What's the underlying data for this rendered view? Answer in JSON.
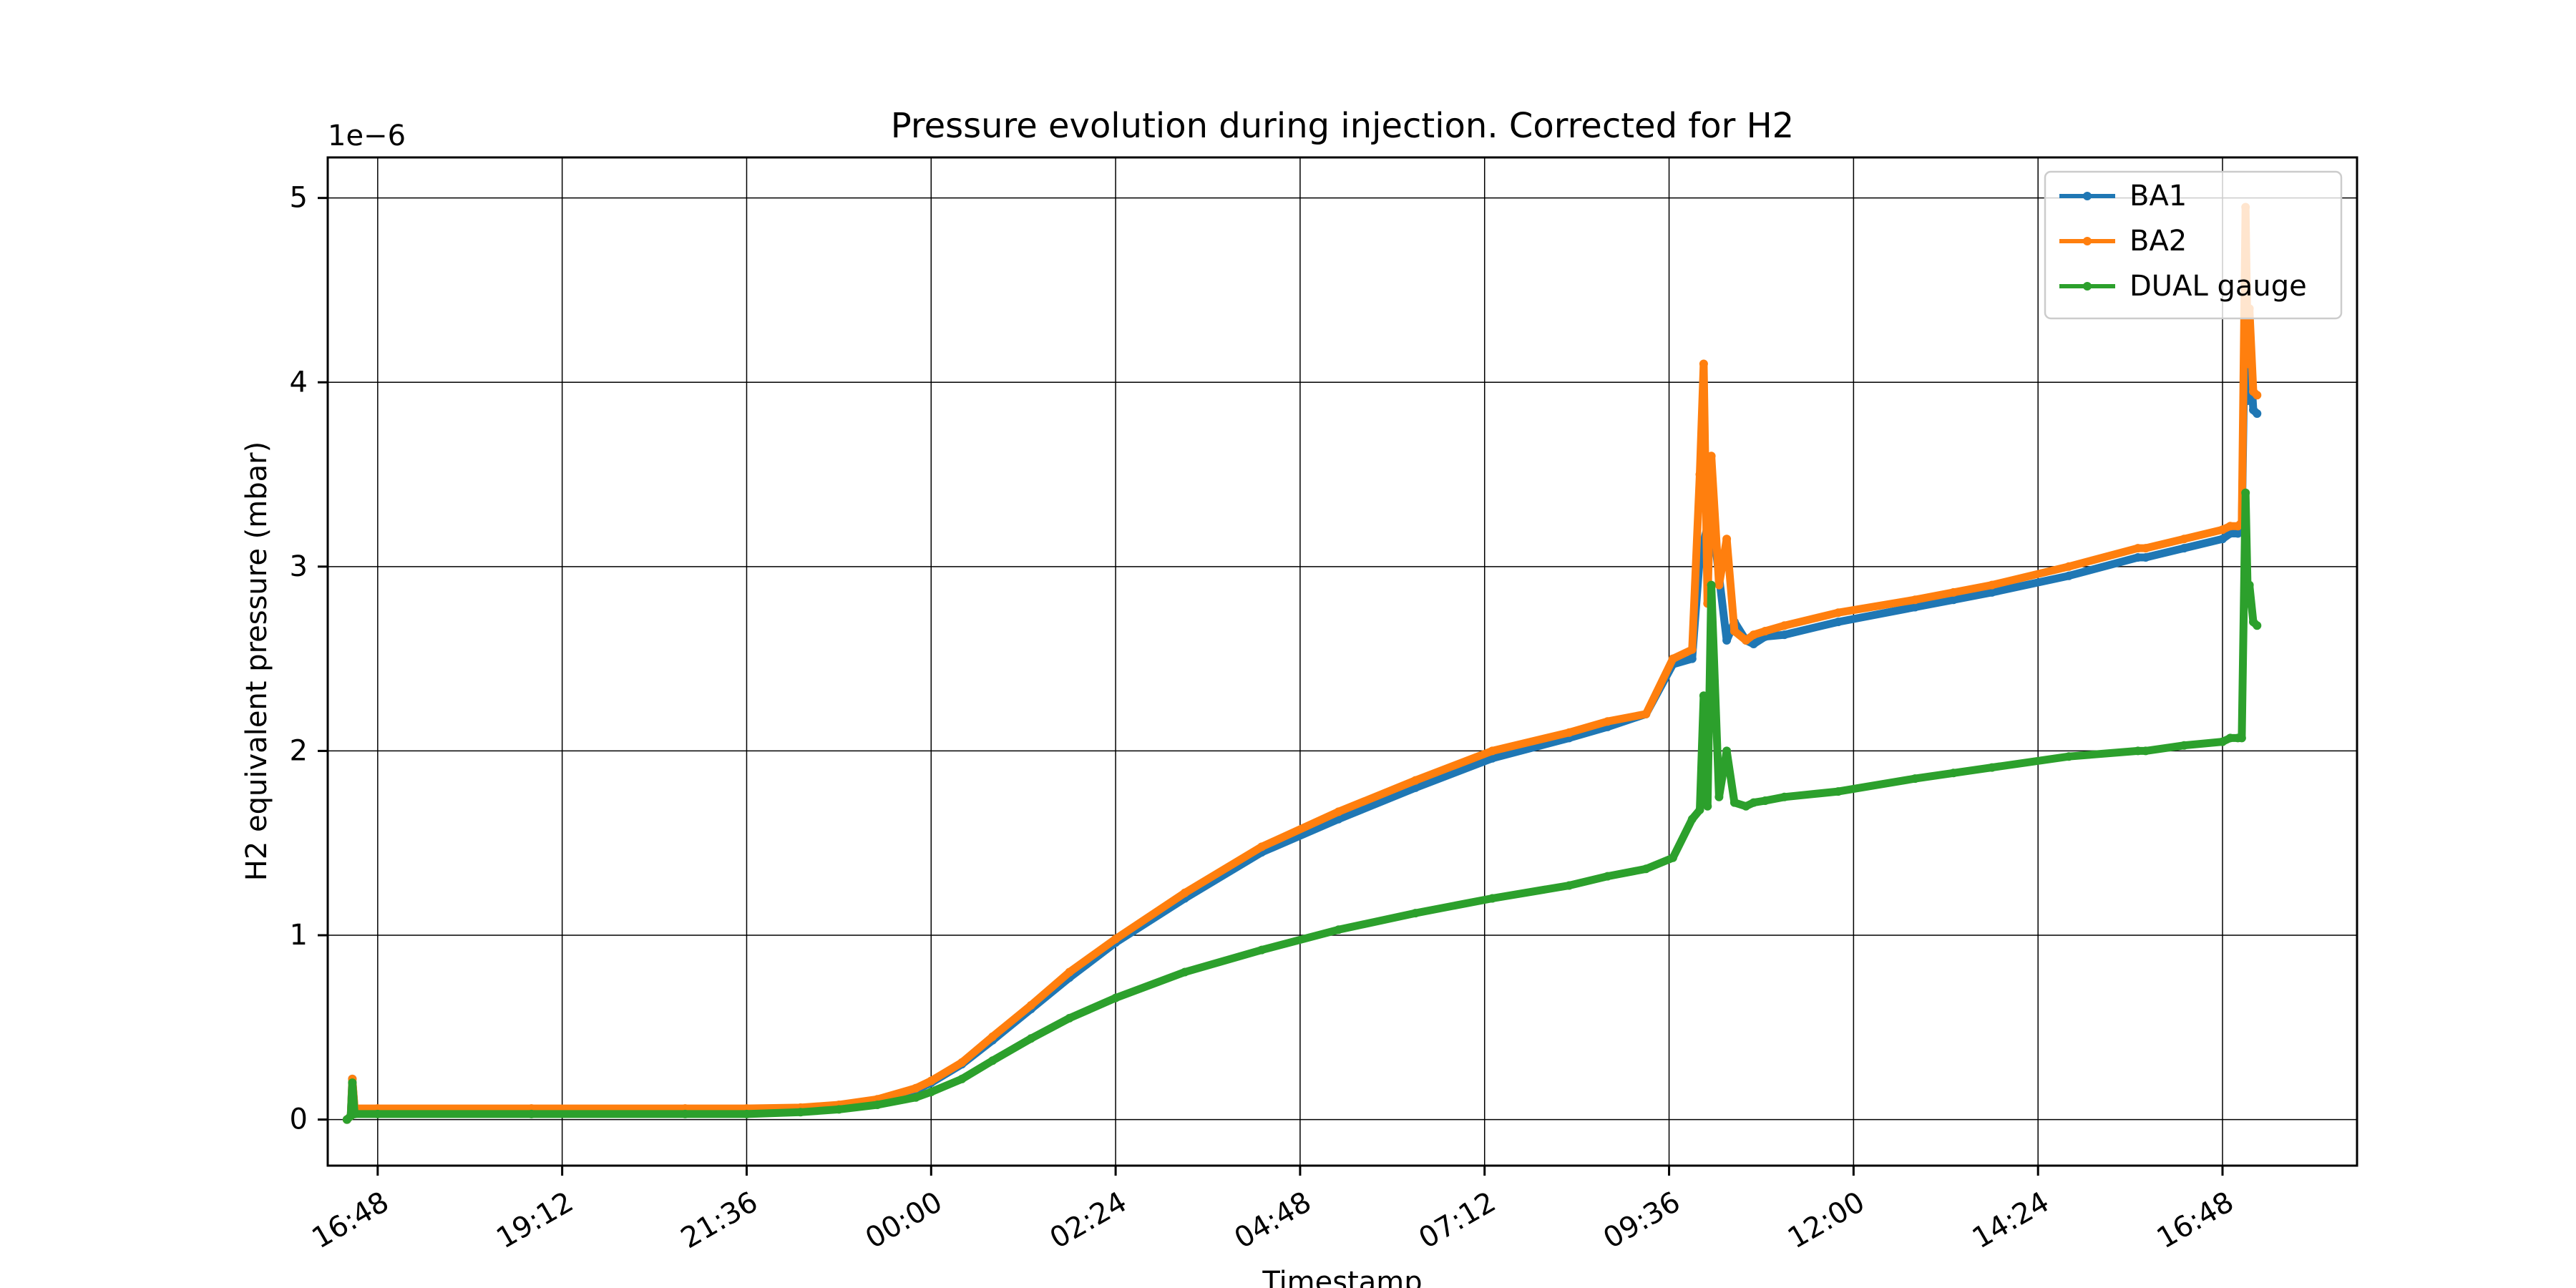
{
  "chart_data": {
    "type": "line",
    "title": "Pressure evolution during injection. Corrected for H2",
    "xlabel": "Timestamp",
    "ylabel": "H2 equivalent pressure (mbar)",
    "y_offset_label": "1e−6",
    "x_unit": "hours since first tick (16:48 day 1)",
    "xlim": [
      -0.65,
      25.75
    ],
    "ylim": [
      -0.25,
      5.22
    ],
    "x_ticks": [
      0,
      2.4,
      4.8,
      7.2,
      9.6,
      12,
      14.4,
      16.8,
      19.2,
      21.6,
      24
    ],
    "x_tick_labels": [
      "16:48",
      "19:12",
      "21:36",
      "00:00",
      "02:24",
      "04:48",
      "07:12",
      "09:36",
      "12:00",
      "14:24",
      "16:48"
    ],
    "y_ticks": [
      0,
      1,
      2,
      3,
      4,
      5
    ],
    "y_tick_labels": [
      "0",
      "1",
      "2",
      "3",
      "4",
      "5"
    ],
    "grid": true,
    "legend_position": "top-right",
    "series": [
      {
        "name": "BA1",
        "color": "#1f77b4",
        "x": [
          -0.4,
          -0.35,
          -0.33,
          -0.3,
          0,
          2,
          4,
          4.8,
          5.5,
          6,
          6.5,
          7,
          7.2,
          7.6,
          8,
          8.5,
          9,
          9.6,
          10.5,
          11.5,
          12.5,
          13.5,
          14.5,
          15.5,
          16,
          16.5,
          16.85,
          17.1,
          17.2,
          17.35,
          17.55,
          17.65,
          17.8,
          17.9,
          18.05,
          18.3,
          19,
          20,
          20.5,
          21,
          22,
          22.9,
          23,
          23.5,
          24,
          24.1,
          24.2,
          24.25,
          24.3,
          24.33,
          24.35,
          24.4,
          24.45
        ],
        "y": [
          0,
          0.02,
          0.22,
          0.05,
          0.05,
          0.05,
          0.05,
          0.05,
          0.055,
          0.07,
          0.1,
          0.16,
          0.2,
          0.3,
          0.43,
          0.6,
          0.77,
          0.96,
          1.2,
          1.45,
          1.63,
          1.8,
          1.96,
          2.07,
          2.13,
          2.2,
          2.47,
          2.5,
          3.05,
          3.3,
          2.6,
          2.7,
          2.6,
          2.58,
          2.62,
          2.63,
          2.7,
          2.78,
          2.82,
          2.86,
          2.95,
          3.05,
          3.05,
          3.1,
          3.15,
          3.18,
          3.18,
          3.2,
          4.55,
          3.9,
          4.2,
          3.85,
          3.83
        ]
      },
      {
        "name": "BA2",
        "color": "#ff7f0e",
        "x": [
          -0.4,
          -0.35,
          -0.33,
          -0.3,
          0,
          2,
          4,
          4.8,
          5.5,
          6,
          6.5,
          7,
          7.2,
          7.6,
          8,
          8.5,
          9,
          9.6,
          10.5,
          11.5,
          12.5,
          13.5,
          14.5,
          15.5,
          16,
          16.5,
          16.85,
          17.1,
          17.2,
          17.25,
          17.3,
          17.35,
          17.45,
          17.55,
          17.65,
          17.8,
          17.9,
          18.05,
          18.3,
          19,
          20,
          20.5,
          21,
          22,
          22.9,
          23,
          23.5,
          24,
          24.1,
          24.2,
          24.25,
          24.3,
          24.33,
          24.35,
          24.4,
          24.45
        ],
        "y": [
          0,
          0.02,
          0.22,
          0.06,
          0.06,
          0.06,
          0.06,
          0.06,
          0.065,
          0.08,
          0.11,
          0.17,
          0.21,
          0.31,
          0.45,
          0.62,
          0.8,
          0.98,
          1.23,
          1.48,
          1.67,
          1.84,
          2.0,
          2.1,
          2.16,
          2.2,
          2.5,
          2.55,
          3.5,
          4.1,
          2.8,
          3.6,
          2.9,
          3.15,
          2.65,
          2.6,
          2.63,
          2.65,
          2.68,
          2.75,
          2.82,
          2.86,
          2.9,
          3.0,
          3.1,
          3.1,
          3.15,
          3.2,
          3.22,
          3.22,
          3.24,
          4.95,
          4.1,
          4.4,
          3.95,
          3.93
        ]
      },
      {
        "name": "DUAL gauge",
        "color": "#2ca02c",
        "x": [
          -0.4,
          -0.35,
          -0.33,
          -0.3,
          0,
          2,
          4,
          4.8,
          5.5,
          6,
          6.5,
          7,
          7.2,
          7.6,
          8,
          8.5,
          9,
          9.6,
          10.5,
          11.5,
          12.5,
          13.5,
          14.5,
          15.5,
          16,
          16.5,
          16.85,
          17.1,
          17.2,
          17.25,
          17.3,
          17.35,
          17.45,
          17.55,
          17.65,
          17.8,
          17.9,
          18.05,
          18.3,
          19,
          20,
          20.5,
          21,
          22,
          22.9,
          23,
          23.5,
          24,
          24.1,
          24.2,
          24.25,
          24.3,
          24.33,
          24.35,
          24.4,
          24.45
        ],
        "y": [
          0,
          0.02,
          0.2,
          0.03,
          0.03,
          0.03,
          0.03,
          0.03,
          0.04,
          0.055,
          0.08,
          0.12,
          0.15,
          0.22,
          0.32,
          0.44,
          0.55,
          0.66,
          0.8,
          0.92,
          1.03,
          1.12,
          1.2,
          1.27,
          1.32,
          1.36,
          1.42,
          1.63,
          1.68,
          2.3,
          1.7,
          2.9,
          1.75,
          2.0,
          1.72,
          1.7,
          1.72,
          1.73,
          1.75,
          1.78,
          1.85,
          1.88,
          1.91,
          1.97,
          2.0,
          2.0,
          2.03,
          2.05,
          2.07,
          2.07,
          2.07,
          3.4,
          2.8,
          2.9,
          2.7,
          2.68
        ]
      }
    ]
  }
}
